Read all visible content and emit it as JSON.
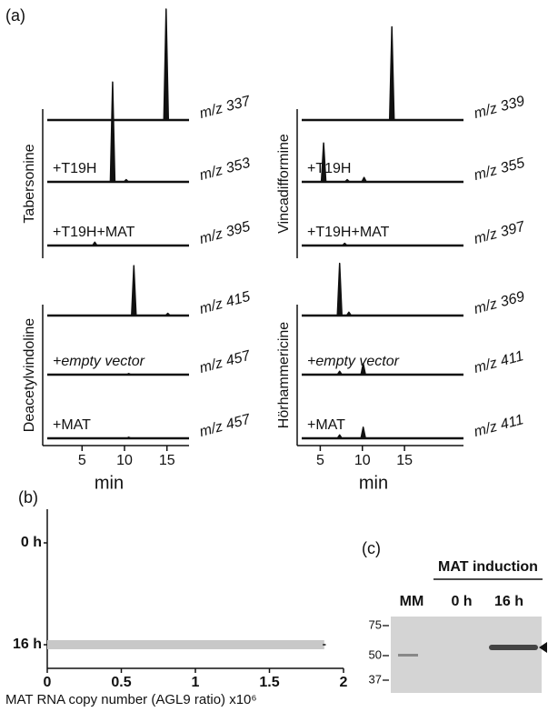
{
  "panel_a": {
    "label": "(a)",
    "columns": [
      {
        "xlim": [
          0.9,
          17.6
        ],
        "xticks": [
          5,
          10,
          15
        ],
        "x_label": "min",
        "groups": [
          {
            "compound": "Tabersonine",
            "traces": [
              {
                "mz": "m/z 337",
                "peaks": [
                  {
                    "x": 14.9,
                    "h": 100
                  }
                ]
              },
              {
                "label": "+T19H",
                "mz": "m/z 353",
                "peaks": [
                  {
                    "x": 8.6,
                    "h": 90
                  },
                  {
                    "x": 10.2,
                    "h": 2
                  }
                ]
              },
              {
                "label": "+T19H+MAT",
                "mz": "m/z 395",
                "peaks": [
                  {
                    "x": 6.5,
                    "h": 3
                  }
                ]
              }
            ]
          },
          {
            "compound": "Deacetylvindoline",
            "traces": [
              {
                "mz": "m/z 415",
                "peaks": [
                  {
                    "x": 11.1,
                    "h": 45
                  },
                  {
                    "x": 15.1,
                    "h": 2
                  }
                ]
              },
              {
                "label": "+empty vector",
                "mz": "m/z 457",
                "peaks": [
                  {
                    "x": 10.5,
                    "h": 1
                  }
                ]
              },
              {
                "label": "+MAT",
                "mz": "m/z 457",
                "peaks": [
                  {
                    "x": 10.5,
                    "h": 1
                  }
                ]
              }
            ]
          }
        ]
      },
      {
        "xlim": [
          2.8,
          22
        ],
        "xticks": [
          5,
          10,
          15
        ],
        "x_label": "min",
        "groups": [
          {
            "compound": "Vincadifformine",
            "traces": [
              {
                "mz": "m/z 339",
                "peaks": [
                  {
                    "x": 13.5,
                    "h": 84
                  }
                ]
              },
              {
                "label": "+T19H",
                "mz": "m/z 355",
                "peaks": [
                  {
                    "x": 5.4,
                    "h": 35
                  },
                  {
                    "x": 8.2,
                    "h": 2
                  },
                  {
                    "x": 10.2,
                    "h": 4
                  }
                ]
              },
              {
                "label": "+T19H+MAT",
                "mz": "m/z 397",
                "peaks": [
                  {
                    "x": 7.9,
                    "h": 2
                  }
                ]
              }
            ]
          },
          {
            "compound": "Hörhammericine",
            "traces": [
              {
                "mz": "m/z 369",
                "peaks": [
                  {
                    "x": 7.3,
                    "h": 47
                  },
                  {
                    "x": 8.4,
                    "h": 3
                  }
                ]
              },
              {
                "label": "+empty vector",
                "mz": "m/z 411",
                "peaks": [
                  {
                    "x": 7.3,
                    "h": 3
                  },
                  {
                    "x": 10.1,
                    "h": 10
                  }
                ]
              },
              {
                "label": "+MAT",
                "mz": "m/z 411",
                "peaks": [
                  {
                    "x": 7.3,
                    "h": 3
                  },
                  {
                    "x": 10.1,
                    "h": 10
                  }
                ]
              }
            ]
          }
        ]
      }
    ]
  },
  "panel_b": {
    "label": "(b)",
    "type": "bar",
    "categories": [
      "0 h",
      "16 h"
    ],
    "values": [
      0,
      1.87
    ],
    "errors": [
      0,
      0.01
    ],
    "color": "#c8c8c8",
    "xlim": [
      0,
      2
    ],
    "xticks": [
      0,
      0.5,
      1,
      1.5,
      2
    ],
    "x_label": "MAT RNA copy number (AGL9 ratio) x10⁶"
  },
  "panel_c": {
    "label": "(c)",
    "header": "MAT induction",
    "lanes": [
      "MM",
      "0 h",
      "16 h"
    ],
    "markers": [
      75,
      50,
      37
    ]
  }
}
